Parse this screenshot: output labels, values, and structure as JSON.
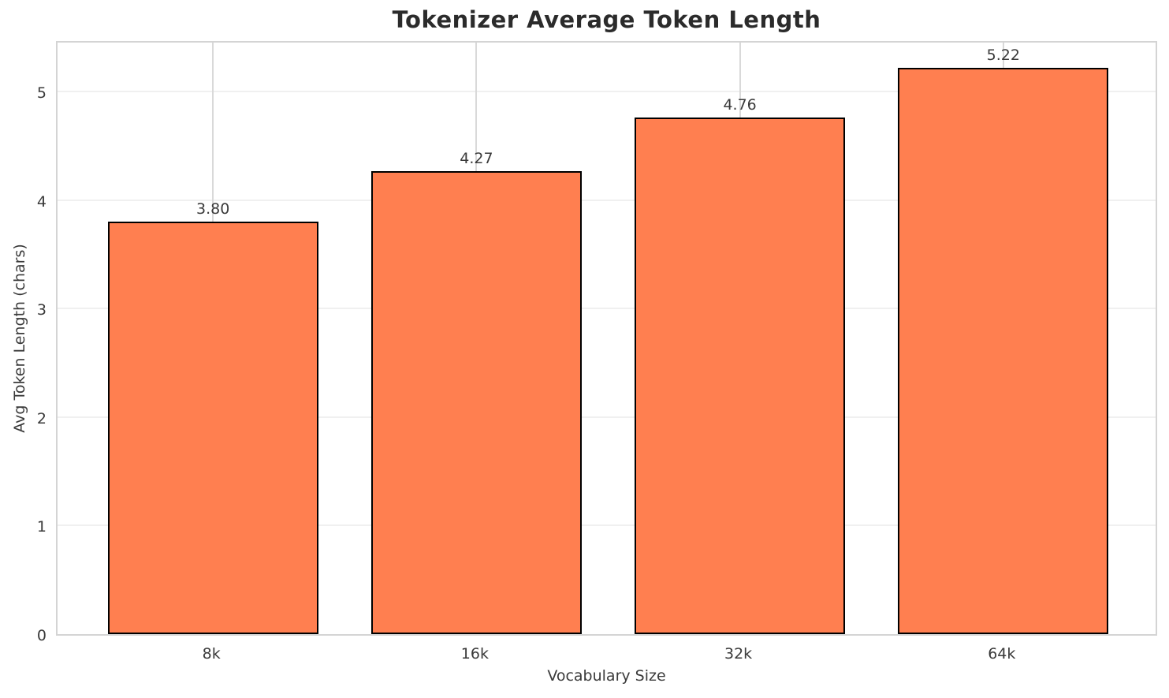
{
  "chart_data": {
    "type": "bar",
    "title": "Tokenizer Average Token Length",
    "xlabel": "Vocabulary Size",
    "ylabel": "Avg Token Length (chars)",
    "categories": [
      "8k",
      "16k",
      "32k",
      "64k"
    ],
    "values": [
      3.8,
      4.27,
      4.76,
      5.22
    ],
    "bar_labels": [
      "3.80",
      "4.27",
      "4.76",
      "5.22"
    ],
    "yticks": [
      0,
      1,
      2,
      3,
      4,
      5
    ],
    "ylim": [
      0,
      5.48
    ],
    "xlim": [
      -0.59,
      3.59
    ],
    "bar_width_units": 0.8,
    "grid": "on",
    "legend": "none",
    "colors": {
      "bar_fill": "#FF7F50",
      "bar_edge": "#000000",
      "h_grid": "#f0f0f0",
      "v_grid": "#d9d9d9",
      "spine": "#d4d4d4",
      "title_text": "#2b2b2b",
      "tick_text": "#3a3a3a"
    }
  }
}
